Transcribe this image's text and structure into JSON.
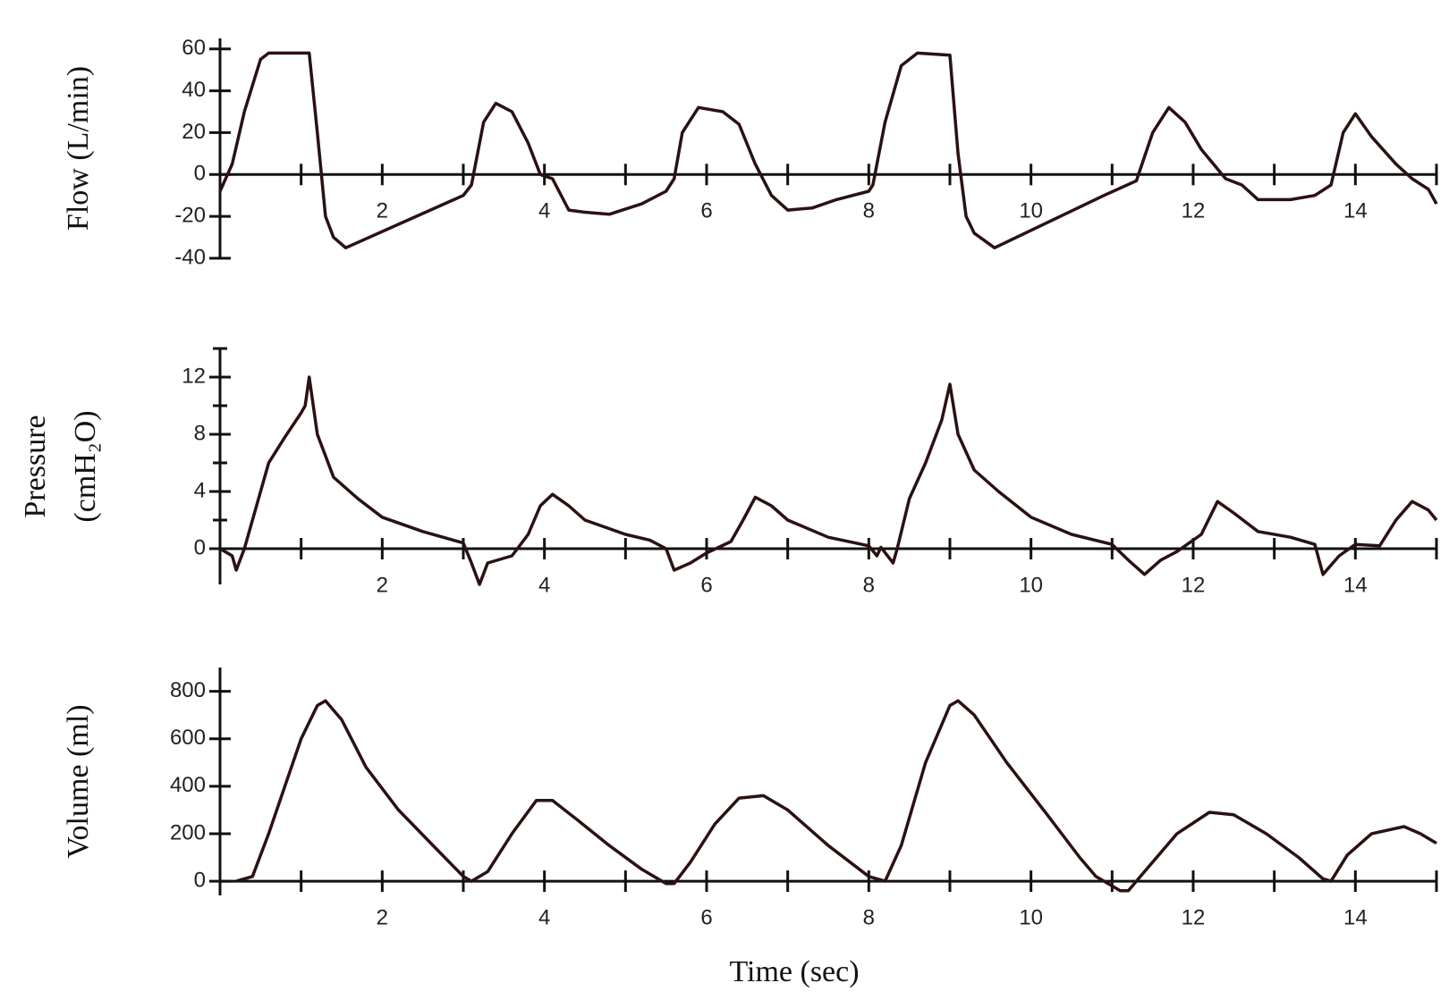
{
  "chart_data": [
    {
      "type": "line",
      "ylabel": [
        "Flow (L/min)"
      ],
      "x": [
        0,
        0.15,
        0.3,
        0.5,
        0.6,
        1.1,
        1.2,
        1.3,
        1.4,
        1.55,
        3.0,
        3.1,
        3.25,
        3.4,
        3.6,
        3.8,
        3.95,
        4.1,
        4.3,
        4.5,
        4.8,
        5.2,
        5.5,
        5.6,
        5.7,
        5.9,
        6.2,
        6.4,
        6.6,
        6.8,
        7.0,
        7.3,
        7.6,
        8.0,
        8.05,
        8.2,
        8.4,
        8.6,
        9.0,
        9.1,
        9.2,
        9.3,
        9.55,
        10.9,
        11.3,
        11.5,
        11.7,
        11.9,
        12.1,
        12.4,
        12.6,
        12.8,
        13.2,
        13.5,
        13.7,
        13.85,
        14.0,
        14.2,
        14.5,
        14.7,
        14.9,
        15.0
      ],
      "values": [
        -8,
        5,
        30,
        55,
        58,
        58,
        20,
        -20,
        -30,
        -35,
        -10,
        -5,
        25,
        34,
        30,
        15,
        0,
        -2,
        -17,
        -18,
        -19,
        -14,
        -8,
        -2,
        20,
        32,
        30,
        24,
        5,
        -10,
        -17,
        -16,
        -12,
        -8,
        -5,
        25,
        52,
        58,
        57,
        10,
        -20,
        -28,
        -35,
        -10,
        -3,
        20,
        32,
        25,
        12,
        -2,
        -5,
        -12,
        -12,
        -10,
        -5,
        20,
        29,
        18,
        5,
        -2,
        -7,
        -14
      ],
      "color": "#2b1112",
      "xlim": [
        0,
        15
      ],
      "xticks": [
        2,
        4,
        6,
        8,
        10,
        12,
        14
      ],
      "xminorticks": [
        1,
        3,
        5,
        7,
        9,
        11,
        13,
        15
      ],
      "ylim": [
        -40,
        65
      ],
      "yticks": [
        -40,
        -20,
        0,
        20,
        40,
        60
      ],
      "yminorticks": []
    },
    {
      "type": "line",
      "ylabel": [
        "Pressure",
        "(cmH₂O)"
      ],
      "x": [
        0,
        0.15,
        0.2,
        0.3,
        0.45,
        0.6,
        0.8,
        1.0,
        1.05,
        1.1,
        1.2,
        1.4,
        1.7,
        2.0,
        2.5,
        3.0,
        3.1,
        3.2,
        3.3,
        3.6,
        3.8,
        3.95,
        4.1,
        4.3,
        4.5,
        5.0,
        5.3,
        5.5,
        5.6,
        5.8,
        6.0,
        6.3,
        6.45,
        6.6,
        6.8,
        7.0,
        7.5,
        8.0,
        8.1,
        8.15,
        8.3,
        8.35,
        8.5,
        8.7,
        8.9,
        9.0,
        9.1,
        9.3,
        9.6,
        10.0,
        10.5,
        11.0,
        11.2,
        11.4,
        11.6,
        11.8,
        12.1,
        12.3,
        12.5,
        12.8,
        13.2,
        13.5,
        13.6,
        13.8,
        14.0,
        14.3,
        14.5,
        14.7,
        14.9,
        15.0
      ],
      "values": [
        0,
        -0.5,
        -1.5,
        0,
        3,
        6,
        7.8,
        9.5,
        10,
        12,
        8,
        5,
        3.5,
        2.2,
        1.2,
        0.4,
        -1,
        -2.5,
        -1,
        -0.5,
        1,
        3,
        3.8,
        3,
        2,
        1,
        0.6,
        0,
        -1.5,
        -1,
        -0.3,
        0.5,
        2,
        3.6,
        3,
        2,
        0.8,
        0.2,
        -0.5,
        0.1,
        -1,
        0,
        3.5,
        6,
        9,
        11.5,
        8,
        5.5,
        4,
        2.2,
        1,
        0.3,
        -0.8,
        -1.8,
        -0.8,
        -0.2,
        1,
        3.3,
        2.5,
        1.2,
        0.8,
        0.3,
        -1.8,
        -0.5,
        0.3,
        0.2,
        2,
        3.3,
        2.7,
        2
      ],
      "color": "#2b1112",
      "xlim": [
        0,
        15
      ],
      "xticks": [
        2,
        4,
        6,
        8,
        10,
        12,
        14
      ],
      "xminorticks": [
        1,
        3,
        5,
        7,
        9,
        11,
        13,
        15
      ],
      "ylim": [
        -2.5,
        14
      ],
      "yticks": [
        0,
        4,
        8,
        12
      ],
      "yminorticks": [
        2,
        6,
        10,
        14
      ]
    },
    {
      "type": "line",
      "ylabel": [
        "Volume (ml)"
      ],
      "xlabel": "Time (sec)",
      "x": [
        0.2,
        0.4,
        0.6,
        0.8,
        1.0,
        1.2,
        1.3,
        1.5,
        1.8,
        2.2,
        2.6,
        3.0,
        3.1,
        3.3,
        3.6,
        3.9,
        4.1,
        4.4,
        4.8,
        5.2,
        5.5,
        5.6,
        5.8,
        6.1,
        6.4,
        6.7,
        7.0,
        7.5,
        8.0,
        8.2,
        8.4,
        8.7,
        9.0,
        9.1,
        9.3,
        9.7,
        10.2,
        10.6,
        10.8,
        11.1,
        11.2,
        11.4,
        11.8,
        12.2,
        12.5,
        12.9,
        13.3,
        13.6,
        13.7,
        13.9,
        14.2,
        14.6,
        14.8,
        15.0
      ],
      "values": [
        0,
        20,
        200,
        400,
        600,
        740,
        760,
        680,
        480,
        300,
        160,
        20,
        0,
        40,
        200,
        340,
        340,
        260,
        150,
        50,
        -10,
        -10,
        80,
        240,
        350,
        360,
        300,
        150,
        20,
        0,
        150,
        500,
        740,
        760,
        700,
        500,
        280,
        100,
        20,
        -40,
        -40,
        40,
        200,
        290,
        280,
        200,
        100,
        10,
        0,
        110,
        200,
        230,
        200,
        160
      ],
      "color": "#2b1112",
      "xlim": [
        0,
        15
      ],
      "xticks": [
        2,
        4,
        6,
        8,
        10,
        12,
        14
      ],
      "xminorticks": [
        1,
        3,
        5,
        7,
        9,
        11,
        13,
        15
      ],
      "ylim": [
        -60,
        900
      ],
      "yticks": [
        0,
        200,
        400,
        600,
        800
      ],
      "yminorticks": []
    }
  ]
}
